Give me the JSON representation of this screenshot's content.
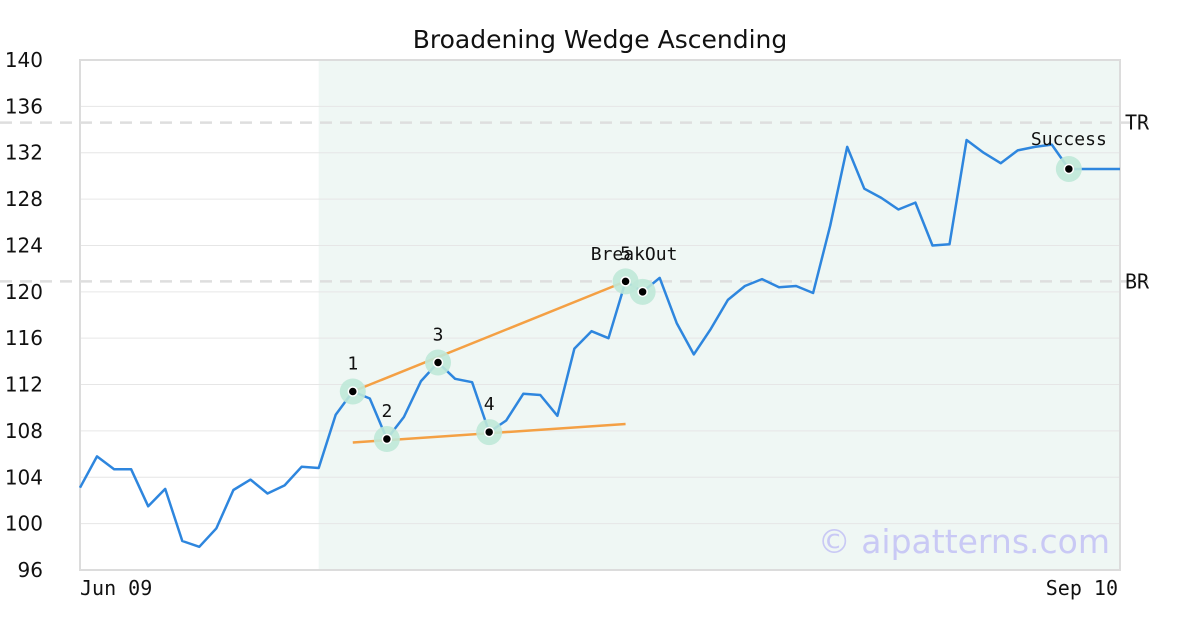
{
  "chart_data": {
    "type": "line",
    "title": "Broadening Wedge Ascending",
    "ylim": [
      96,
      140
    ],
    "yticks": [
      96,
      100,
      104,
      108,
      112,
      116,
      120,
      124,
      128,
      132,
      136,
      140
    ],
    "xlabels": {
      "start": "Jun 09",
      "end": "Sep 10"
    },
    "series": [
      {
        "values": [
          103.1,
          105.8,
          104.7,
          104.7,
          101.5,
          103.0,
          98.5,
          98.0,
          99.6,
          102.9,
          103.8,
          102.6,
          103.3,
          104.9,
          104.8,
          109.4,
          111.4,
          110.8,
          107.3,
          109.2,
          112.3,
          113.9,
          112.5,
          112.2,
          107.9,
          108.9,
          111.2,
          111.1,
          109.3,
          115.1,
          116.6,
          116.0,
          120.9,
          120.0,
          121.2,
          117.3,
          114.6,
          116.8,
          119.3,
          120.5,
          121.1,
          120.4,
          120.5,
          119.9,
          125.7,
          132.5,
          128.9,
          128.1,
          127.1,
          127.7,
          124.0,
          124.1,
          133.1,
          132.0,
          131.1,
          132.2,
          132.5,
          132.7,
          130.6,
          130.6,
          130.6,
          130.6
        ],
        "color": "#2e86de"
      }
    ],
    "highlight_range": {
      "start_index": 14,
      "end_index": 61,
      "color": "#eff7f4"
    },
    "levels": [
      {
        "label": "TR",
        "value": 134.6
      },
      {
        "label": "BR",
        "value": 120.9
      }
    ],
    "pattern_points": [
      {
        "label": "1",
        "index": 16,
        "value": 111.4
      },
      {
        "label": "2",
        "index": 18,
        "value": 107.3
      },
      {
        "label": "3",
        "index": 21,
        "value": 113.9
      },
      {
        "label": "4",
        "index": 24,
        "value": 107.9
      },
      {
        "label": "5",
        "index": 32,
        "value": 120.9
      }
    ],
    "trendlines": [
      {
        "from_index": 16,
        "from_value": 111.4,
        "to_index": 32,
        "to_value": 120.9,
        "color": "#f4a044"
      },
      {
        "from_index": 16,
        "from_value": 107.0,
        "to_index": 32,
        "to_value": 108.6,
        "color": "#f4a044"
      }
    ],
    "annotations": [
      {
        "label": "BreakOut",
        "index": 33,
        "value": 120.0
      },
      {
        "label": "Success",
        "index": 58,
        "value": 130.6
      }
    ],
    "marker_ring_color": "#bfe8d8",
    "grid": true,
    "watermark": "© aipatterns.com"
  }
}
